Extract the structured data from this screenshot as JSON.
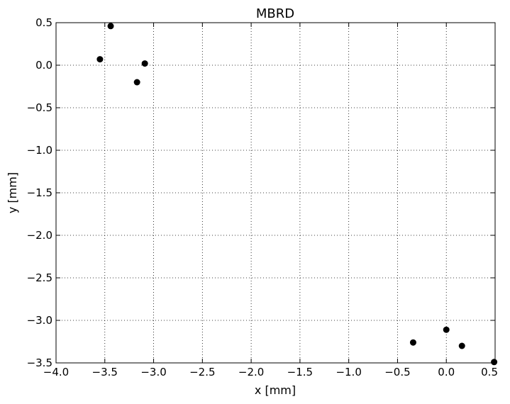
{
  "chart_data": {
    "type": "scatter",
    "title": "MBRD",
    "xlabel": "x [mm]",
    "ylabel": "y [mm]",
    "xlim": [
      -4.0,
      0.5
    ],
    "ylim": [
      -3.5,
      0.5
    ],
    "grid": true,
    "x_ticks": [
      -4.0,
      -3.5,
      -3.0,
      -2.5,
      -2.0,
      -1.5,
      -1.0,
      -0.5,
      0.0,
      0.5
    ],
    "x_tick_labels": [
      "−4.0",
      "−3.5",
      "−3.0",
      "−2.5",
      "−2.0",
      "−1.5",
      "−1.0",
      "−0.5",
      "0.0",
      "0.5"
    ],
    "y_ticks": [
      0.5,
      0.0,
      -0.5,
      -1.0,
      -1.5,
      -2.0,
      -2.5,
      -3.0,
      -3.5
    ],
    "y_tick_labels": [
      "0.5",
      "0.0",
      "−0.5",
      "−1.0",
      "−1.5",
      "−2.0",
      "−2.5",
      "−3.0",
      "−3.5"
    ],
    "marker_color": "#000000",
    "points": [
      {
        "x": -3.44,
        "y": 0.46
      },
      {
        "x": -3.55,
        "y": 0.07
      },
      {
        "x": -3.09,
        "y": 0.02
      },
      {
        "x": -3.17,
        "y": -0.2
      },
      {
        "x": -0.34,
        "y": -3.26
      },
      {
        "x": 0.0,
        "y": -3.11
      },
      {
        "x": 0.16,
        "y": -3.3
      },
      {
        "x": 0.49,
        "y": -3.49
      }
    ]
  }
}
